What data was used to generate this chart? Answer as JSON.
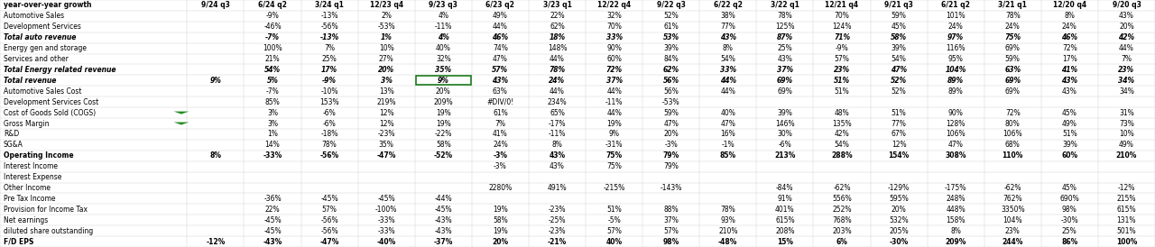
{
  "header": [
    "year-over-year growth",
    "9/24 q3",
    "6/24 q2",
    "3/24 q1",
    "12/23 q4",
    "9/23 q3",
    "6/23 q2",
    "3/23 q1",
    "12/22 q4",
    "9/22 q3",
    "6/22 q2",
    "3/22 q1",
    "12/21 q4",
    "9/21 q3",
    "6/21 q2",
    "3/21 q1",
    "12/20 q4",
    "9/20 q3"
  ],
  "rows": [
    {
      "label": "Automotive Sales",
      "bold": false,
      "italic": false,
      "values": [
        "",
        "-9%",
        "-13%",
        "2%",
        "4%",
        "49%",
        "22%",
        "32%",
        "52%",
        "38%",
        "78%",
        "70%",
        "59%",
        "101%",
        "78%",
        "8%",
        "43%"
      ]
    },
    {
      "label": "Development Services",
      "bold": false,
      "italic": false,
      "values": [
        "",
        "-46%",
        "-56%",
        "-53%",
        "-11%",
        "44%",
        "62%",
        "70%",
        "61%",
        "77%",
        "125%",
        "124%",
        "45%",
        "24%",
        "24%",
        "24%",
        "20%"
      ]
    },
    {
      "label": "Total auto revenue",
      "bold": true,
      "italic": true,
      "values": [
        "",
        "-7%",
        "-13%",
        "1%",
        "4%",
        "46%",
        "18%",
        "33%",
        "53%",
        "43%",
        "87%",
        "71%",
        "58%",
        "97%",
        "75%",
        "46%",
        "42%"
      ]
    },
    {
      "label": "Energy gen and storage",
      "bold": false,
      "italic": false,
      "values": [
        "",
        "100%",
        "7%",
        "10%",
        "40%",
        "74%",
        "148%",
        "90%",
        "39%",
        "8%",
        "25%",
        "-9%",
        "39%",
        "116%",
        "69%",
        "72%",
        "44%"
      ]
    },
    {
      "label": "Services and other",
      "bold": false,
      "italic": false,
      "values": [
        "",
        "21%",
        "25%",
        "27%",
        "32%",
        "47%",
        "44%",
        "60%",
        "84%",
        "54%",
        "43%",
        "57%",
        "54%",
        "95%",
        "59%",
        "17%",
        "7%"
      ]
    },
    {
      "label": "Total Energy related revenue",
      "bold": true,
      "italic": true,
      "values": [
        "",
        "54%",
        "17%",
        "20%",
        "35%",
        "57%",
        "78%",
        "72%",
        "62%",
        "33%",
        "37%",
        "23%",
        "47%",
        "104%",
        "63%",
        "41%",
        "23%"
      ]
    },
    {
      "label": "Total revenue",
      "bold": true,
      "italic": true,
      "values": [
        "9%",
        "5%",
        "-9%",
        "3%",
        "9%",
        "43%",
        "24%",
        "37%",
        "56%",
        "44%",
        "69%",
        "51%",
        "52%",
        "89%",
        "69%",
        "43%",
        "34%"
      ]
    },
    {
      "label": "Automotive Sales Cost",
      "bold": false,
      "italic": false,
      "values": [
        "",
        "-7%",
        "-10%",
        "13%",
        "20%",
        "63%",
        "44%",
        "44%",
        "56%",
        "44%",
        "69%",
        "51%",
        "52%",
        "89%",
        "69%",
        "43%",
        "34%"
      ]
    },
    {
      "label": "Development Services Cost",
      "bold": false,
      "italic": false,
      "values": [
        "",
        "85%",
        "153%",
        "219%",
        "209%",
        "#DIV/0!",
        "234%",
        "-11%",
        "-53%",
        "",
        "",
        "",
        "",
        "",
        "",
        "",
        ""
      ]
    },
    {
      "label": "Cost of Goods Sold (COGS)",
      "bold": false,
      "italic": false,
      "values": [
        "",
        "3%",
        "-6%",
        "12%",
        "19%",
        "61%",
        "65%",
        "44%",
        "59%",
        "40%",
        "39%",
        "48%",
        "51%",
        "90%",
        "72%",
        "45%",
        "31%"
      ]
    },
    {
      "label": "Gross Margin",
      "bold": false,
      "italic": false,
      "values": [
        "",
        "3%",
        "-6%",
        "12%",
        "19%",
        "7%",
        "-17%",
        "19%",
        "47%",
        "47%",
        "146%",
        "135%",
        "77%",
        "128%",
        "80%",
        "49%",
        "73%"
      ]
    },
    {
      "label": "R&D",
      "bold": false,
      "italic": false,
      "values": [
        "",
        "1%",
        "-18%",
        "-23%",
        "-22%",
        "41%",
        "-11%",
        "9%",
        "20%",
        "16%",
        "30%",
        "42%",
        "67%",
        "106%",
        "106%",
        "51%",
        "10%"
      ]
    },
    {
      "label": "SG&A",
      "bold": false,
      "italic": false,
      "values": [
        "",
        "14%",
        "78%",
        "35%",
        "58%",
        "24%",
        "8%",
        "-31%",
        "-3%",
        "-1%",
        "-6%",
        "54%",
        "12%",
        "47%",
        "68%",
        "39%",
        "49%"
      ]
    },
    {
      "label": "Operating Income",
      "bold": true,
      "italic": false,
      "values": [
        "8%",
        "-33%",
        "-56%",
        "-47%",
        "-52%",
        "-3%",
        "43%",
        "75%",
        "79%",
        "85%",
        "213%",
        "288%",
        "154%",
        "308%",
        "110%",
        "60%",
        "210%"
      ]
    },
    {
      "label": "Interest Income",
      "bold": false,
      "italic": false,
      "values": [
        "",
        "",
        "",
        "",
        "",
        "-3%",
        "43%",
        "75%",
        "79%",
        "",
        "",
        "",
        "",
        "",
        "",
        "",
        ""
      ]
    },
    {
      "label": "Interest Expense",
      "bold": false,
      "italic": false,
      "values": [
        "",
        "",
        "",
        "",
        "",
        "",
        "",
        "",
        "",
        "",
        "",
        "",
        "",
        "",
        "",
        "",
        ""
      ]
    },
    {
      "label": "Other Income",
      "bold": false,
      "italic": false,
      "values": [
        "",
        "",
        "",
        "",
        "",
        "2280%",
        "491%",
        "-215%",
        "-143%",
        "",
        "-84%",
        "-62%",
        "-129%",
        "-175%",
        "-62%",
        "45%",
        "-12%"
      ]
    },
    {
      "label": "Pre Tax Income",
      "bold": false,
      "italic": false,
      "values": [
        "",
        "-36%",
        "-45%",
        "-45%",
        "-44%",
        "",
        "",
        "",
        "",
        "",
        "91%",
        "556%",
        "595%",
        "248%",
        "762%",
        "690%",
        "215%"
      ]
    },
    {
      "label": "Provision for Income Tax",
      "bold": false,
      "italic": false,
      "values": [
        "",
        "22%",
        "57%",
        "-100%",
        "-45%",
        "19%",
        "-23%",
        "51%",
        "88%",
        "78%",
        "401%",
        "252%",
        "20%",
        "448%",
        "3350%",
        "98%",
        "615%"
      ]
    },
    {
      "label": "Net earnings",
      "bold": false,
      "italic": false,
      "values": [
        "",
        "-45%",
        "-56%",
        "-33%",
        "-43%",
        "58%",
        "-25%",
        "-5%",
        "37%",
        "93%",
        "615%",
        "768%",
        "532%",
        "158%",
        "104%",
        "-30%",
        "131%"
      ]
    },
    {
      "label": "diluted share outstanding",
      "bold": false,
      "italic": false,
      "values": [
        "",
        "-45%",
        "-56%",
        "-33%",
        "-43%",
        "19%",
        "-23%",
        "57%",
        "57%",
        "210%",
        "208%",
        "203%",
        "205%",
        "8%",
        "23%",
        "25%",
        "501%"
      ]
    },
    {
      "label": "F/D EPS",
      "bold": true,
      "italic": false,
      "values": [
        "-12%",
        "-43%",
        "-47%",
        "-40%",
        "-37%",
        "20%",
        "-21%",
        "40%",
        "98%",
        "-48%",
        "15%",
        "6%",
        "-30%",
        "209%",
        "244%",
        "86%",
        "100%"
      ]
    }
  ],
  "highlight_row": 6,
  "highlight_col": 5,
  "green_arrow_rows": [
    9,
    10
  ],
  "bg_color": "#FFFFFF",
  "grid_color": "#CCCCCC",
  "text_color": "#000000",
  "bold_text_color": "#000000"
}
